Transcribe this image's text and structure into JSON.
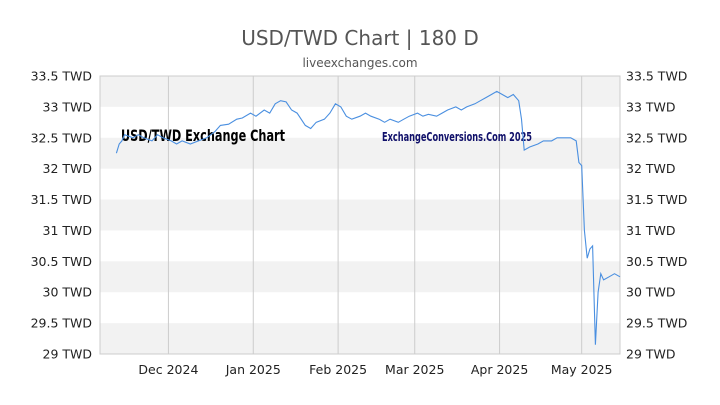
{
  "header": {
    "title": "USD/TWD Chart | 180 D",
    "source": "liveexchanges.com"
  },
  "watermarks": {
    "left": "USD/TWD Exchange Chart",
    "right": "ExchangeConversions.Com 2025"
  },
  "colors": {
    "line": "#4a8fe0",
    "band": "#f2f2f2",
    "grid": "#cccccc",
    "text": "#333333",
    "watermark_left": "#000000",
    "watermark_right": "#10106a"
  },
  "chart_data": {
    "type": "line",
    "title": "USD/TWD Chart | 180 D",
    "ylim": [
      29,
      33.5
    ],
    "y_ticks": [
      29,
      29.5,
      30,
      30.5,
      31,
      31.5,
      32,
      32.5,
      33,
      33.5
    ],
    "y_unit": "TWD",
    "x_range": [
      "2024-11-06",
      "2025-05-15"
    ],
    "x_ticks": [
      {
        "label": "Dec 2024",
        "date": "2024-12-01"
      },
      {
        "label": "Jan 2025",
        "date": "2025-01-01"
      },
      {
        "label": "Feb 2025",
        "date": "2025-02-01"
      },
      {
        "label": "Mar 2025",
        "date": "2025-03-01"
      },
      {
        "label": "Apr 2025",
        "date": "2025-04-01"
      },
      {
        "label": "May 2025",
        "date": "2025-05-01"
      }
    ],
    "grid": true,
    "alternating_bands": true,
    "series": [
      {
        "points": [
          [
            "2024-11-12",
            32.25
          ],
          [
            "2024-11-13",
            32.4
          ],
          [
            "2024-11-14",
            32.45
          ],
          [
            "2024-11-15",
            32.55
          ],
          [
            "2024-11-18",
            32.5
          ],
          [
            "2024-11-20",
            32.55
          ],
          [
            "2024-11-22",
            32.5
          ],
          [
            "2024-11-25",
            32.45
          ],
          [
            "2024-11-27",
            32.55
          ],
          [
            "2024-11-29",
            32.5
          ],
          [
            "2024-12-02",
            32.45
          ],
          [
            "2024-12-04",
            32.4
          ],
          [
            "2024-12-06",
            32.45
          ],
          [
            "2024-12-09",
            32.4
          ],
          [
            "2024-12-12",
            32.45
          ],
          [
            "2024-12-15",
            32.5
          ],
          [
            "2024-12-18",
            32.6
          ],
          [
            "2024-12-20",
            32.7
          ],
          [
            "2024-12-23",
            32.72
          ],
          [
            "2024-12-26",
            32.8
          ],
          [
            "2024-12-28",
            32.82
          ],
          [
            "2024-12-31",
            32.9
          ],
          [
            "2025-01-02",
            32.85
          ],
          [
            "2025-01-05",
            32.95
          ],
          [
            "2025-01-07",
            32.9
          ],
          [
            "2025-01-09",
            33.05
          ],
          [
            "2025-01-11",
            33.1
          ],
          [
            "2025-01-13",
            33.08
          ],
          [
            "2025-01-15",
            32.95
          ],
          [
            "2025-01-17",
            32.9
          ],
          [
            "2025-01-20",
            32.7
          ],
          [
            "2025-01-22",
            32.65
          ],
          [
            "2025-01-24",
            32.75
          ],
          [
            "2025-01-27",
            32.8
          ],
          [
            "2025-01-29",
            32.9
          ],
          [
            "2025-01-31",
            33.05
          ],
          [
            "2025-02-02",
            33.0
          ],
          [
            "2025-02-04",
            32.85
          ],
          [
            "2025-02-06",
            32.8
          ],
          [
            "2025-02-09",
            32.85
          ],
          [
            "2025-02-11",
            32.9
          ],
          [
            "2025-02-13",
            32.85
          ],
          [
            "2025-02-16",
            32.8
          ],
          [
            "2025-02-18",
            32.75
          ],
          [
            "2025-02-20",
            32.8
          ],
          [
            "2025-02-23",
            32.75
          ],
          [
            "2025-02-25",
            32.8
          ],
          [
            "2025-02-27",
            32.85
          ],
          [
            "2025-03-02",
            32.9
          ],
          [
            "2025-03-04",
            32.85
          ],
          [
            "2025-03-06",
            32.88
          ],
          [
            "2025-03-09",
            32.85
          ],
          [
            "2025-03-11",
            32.9
          ],
          [
            "2025-03-13",
            32.95
          ],
          [
            "2025-03-16",
            33.0
          ],
          [
            "2025-03-18",
            32.95
          ],
          [
            "2025-03-20",
            33.0
          ],
          [
            "2025-03-23",
            33.05
          ],
          [
            "2025-03-25",
            33.1
          ],
          [
            "2025-03-27",
            33.15
          ],
          [
            "2025-03-29",
            33.2
          ],
          [
            "2025-03-31",
            33.25
          ],
          [
            "2025-04-02",
            33.2
          ],
          [
            "2025-04-04",
            33.15
          ],
          [
            "2025-04-06",
            33.2
          ],
          [
            "2025-04-08",
            33.1
          ],
          [
            "2025-04-09",
            32.8
          ],
          [
            "2025-04-10",
            32.3
          ],
          [
            "2025-04-12",
            32.35
          ],
          [
            "2025-04-15",
            32.4
          ],
          [
            "2025-04-17",
            32.45
          ],
          [
            "2025-04-20",
            32.45
          ],
          [
            "2025-04-22",
            32.5
          ],
          [
            "2025-04-25",
            32.5
          ],
          [
            "2025-04-27",
            32.5
          ],
          [
            "2025-04-29",
            32.45
          ],
          [
            "2025-04-30",
            32.1
          ],
          [
            "2025-05-01",
            32.05
          ],
          [
            "2025-05-02",
            31.0
          ],
          [
            "2025-05-03",
            30.55
          ],
          [
            "2025-05-04",
            30.7
          ],
          [
            "2025-05-05",
            30.75
          ],
          [
            "2025-05-06",
            29.15
          ],
          [
            "2025-05-07",
            30.0
          ],
          [
            "2025-05-08",
            30.3
          ],
          [
            "2025-05-09",
            30.2
          ],
          [
            "2025-05-11",
            30.25
          ],
          [
            "2025-05-13",
            30.3
          ],
          [
            "2025-05-15",
            30.25
          ]
        ]
      }
    ]
  }
}
